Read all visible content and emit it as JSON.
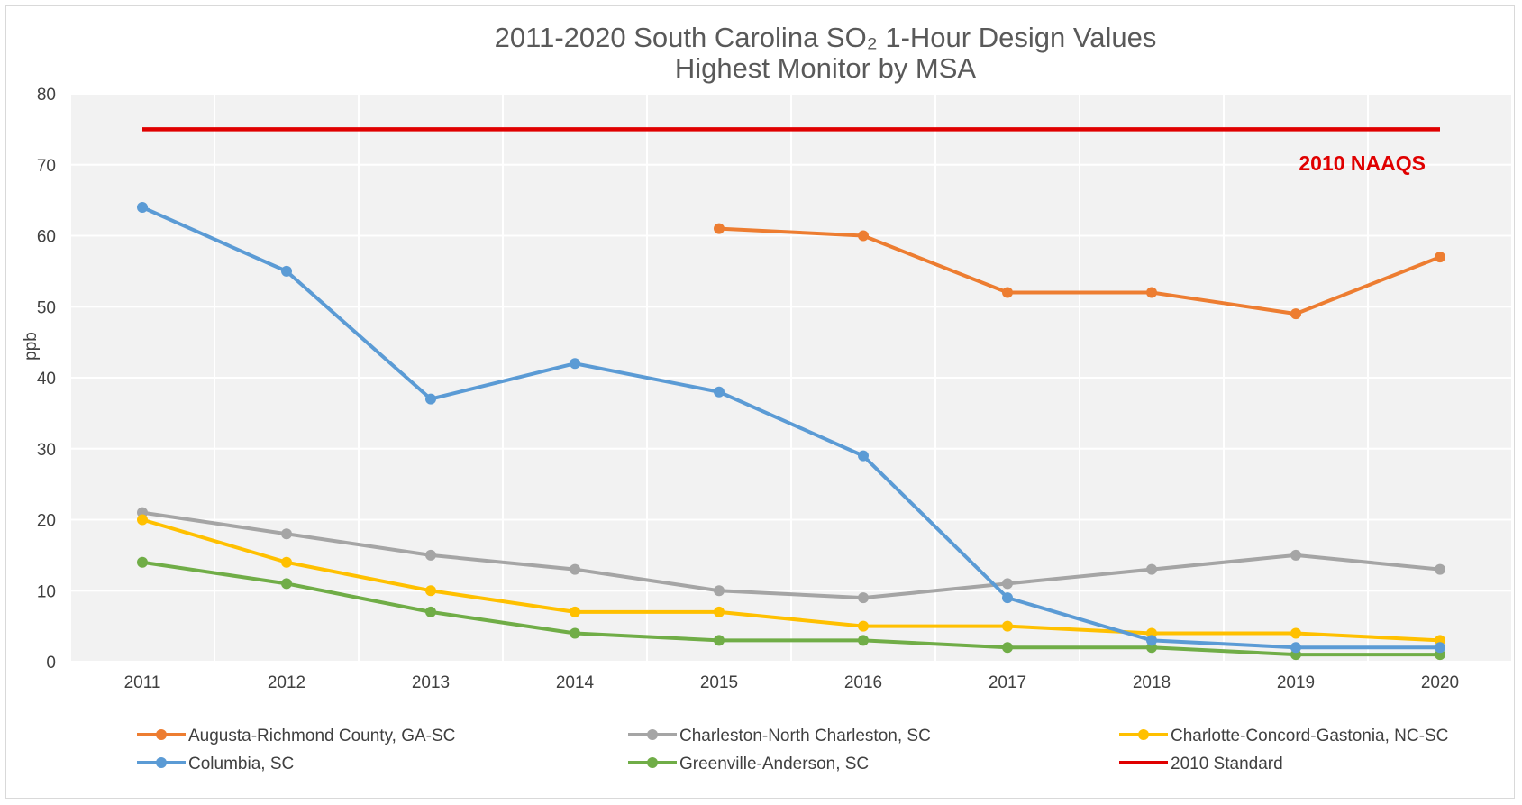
{
  "chart_data": {
    "type": "line",
    "title": "2011-2020 South Carolina SO₂ 1-Hour Design Values",
    "subtitle": "Highest Monitor by MSA",
    "xlabel": "",
    "ylabel": "ppb",
    "ylim": [
      0,
      80
    ],
    "yticks": [
      "0",
      "10",
      "20",
      "30",
      "40",
      "50",
      "60",
      "70",
      "80"
    ],
    "categories": [
      "2011",
      "2012",
      "2013",
      "2014",
      "2015",
      "2016",
      "2017",
      "2018",
      "2019",
      "2020"
    ],
    "grid": true,
    "legend_position": "bottom",
    "annotation": "2010 NAAQS",
    "series": [
      {
        "name": "Augusta-Richmond County, GA-SC",
        "color": "#ed7d31",
        "markers": true,
        "values": [
          null,
          null,
          null,
          null,
          61,
          60,
          52,
          52,
          49,
          57
        ]
      },
      {
        "name": "Charleston-North Charleston, SC",
        "color": "#a5a5a5",
        "markers": true,
        "values": [
          21,
          18,
          15,
          13,
          10,
          9,
          11,
          13,
          15,
          13
        ]
      },
      {
        "name": "Charlotte-Concord-Gastonia, NC-SC",
        "color": "#ffc000",
        "markers": true,
        "values": [
          20,
          14,
          10,
          7,
          7,
          5,
          5,
          4,
          4,
          3
        ]
      },
      {
        "name": "Columbia, SC",
        "color": "#5b9bd5",
        "markers": true,
        "values": [
          64,
          55,
          37,
          42,
          38,
          29,
          9,
          3,
          2,
          2
        ]
      },
      {
        "name": "Greenville-Anderson, SC",
        "color": "#70ad47",
        "markers": true,
        "values": [
          14,
          11,
          7,
          4,
          3,
          3,
          2,
          2,
          1,
          1
        ]
      },
      {
        "name": "2010 Standard",
        "color": "#e00000",
        "markers": false,
        "values": [
          75,
          75,
          75,
          75,
          75,
          75,
          75,
          75,
          75,
          75
        ]
      }
    ]
  }
}
